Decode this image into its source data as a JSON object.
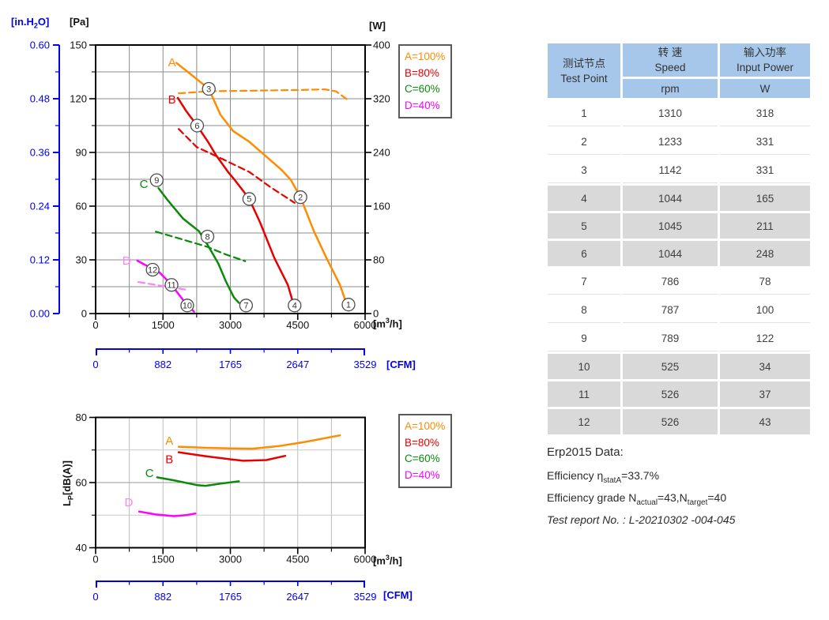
{
  "colors": {
    "A": "#FF8C00",
    "B": "#E60000",
    "C": "#0A8A0A",
    "D": "#FF00FF",
    "D_light": "#FF80FF",
    "blue_axis": "#0000EE",
    "table_header_bg": "#A6C7E9",
    "table_shaded_row_bg": "#D9D9D9"
  },
  "legend": {
    "items": [
      {
        "label": "A=100%",
        "color": "#FF8C00"
      },
      {
        "label": "B=80%",
        "color": "#E60000"
      },
      {
        "label": "C=60%",
        "color": "#0A8A0A"
      },
      {
        "label": "D=40%",
        "color": "#FF00FF"
      }
    ]
  },
  "units": {
    "inh2o_pre": "[in.H",
    "inh2o_sub": "2",
    "inh2o_post": "O]",
    "pa": "[Pa]",
    "w": "[W]",
    "m3h_pre": "[m",
    "m3h_sup": "3",
    "m3h_post": "/h]",
    "cfm": "[CFM]",
    "lp_pre": "L",
    "lp_sub": "P",
    "lp_post": "[dB(A)]"
  },
  "chart_data": [
    {
      "type": "line",
      "x_axis": {
        "unit": "m3/h",
        "range": [
          0,
          6000
        ],
        "ticks": [
          0,
          1500,
          3000,
          4500,
          6000
        ],
        "minor_step": 750
      },
      "y_axis": {
        "unit": "Pa",
        "range": [
          0,
          150
        ],
        "ticks": [
          0,
          30,
          60,
          90,
          120,
          150
        ],
        "minor_step": 15
      },
      "y2_axis": {
        "unit": "W",
        "range": [
          0,
          400
        ],
        "ticks": [
          0,
          80,
          160,
          240,
          320,
          400
        ],
        "minor_step": 40
      },
      "y3_axis": {
        "unit": "in.H2O",
        "range": [
          0,
          0.6
        ],
        "ticks": [
          "0.00",
          "0.12",
          "0.24",
          "0.36",
          "0.48",
          "0.60"
        ]
      },
      "x2_axis": {
        "unit": "CFM",
        "range": [
          0,
          3529
        ],
        "ticks": [
          0,
          882,
          1765,
          2647,
          3529
        ]
      },
      "grid": "on",
      "series": [
        {
          "name": "A-pressure",
          "legend": "A=100%",
          "color": "#FF8C00",
          "dash": false,
          "unit": "Pa",
          "points": [
            [
              1800,
              140
            ],
            [
              2150,
              133
            ],
            [
              2520,
              125.5
            ],
            [
              2780,
              111
            ],
            [
              3060,
              102
            ],
            [
              3420,
              96
            ],
            [
              3740,
              89
            ],
            [
              4150,
              80
            ],
            [
              4350,
              74.5
            ],
            [
              4560,
              65
            ],
            [
              4860,
              46
            ],
            [
              5140,
              31
            ],
            [
              5440,
              16
            ],
            [
              5620,
              3
            ]
          ]
        },
        {
          "name": "B-pressure",
          "legend": "B=80%",
          "color": "#E60000",
          "dash": false,
          "unit": "Pa",
          "points": [
            [
              1830,
              120.5
            ],
            [
              2020,
              113
            ],
            [
              2260,
              105
            ],
            [
              2500,
              96
            ],
            [
              2680,
              88.5
            ],
            [
              2950,
              79
            ],
            [
              3100,
              74.5
            ],
            [
              3300,
              68
            ],
            [
              3420,
              64
            ],
            [
              3660,
              51
            ],
            [
              3980,
              31
            ],
            [
              4280,
              16
            ],
            [
              4380,
              7.5
            ]
          ]
        },
        {
          "name": "C-pressure",
          "legend": "C=60%",
          "color": "#0A8A0A",
          "dash": false,
          "unit": "Pa",
          "points": [
            [
              1400,
              70
            ],
            [
              1600,
              63.5
            ],
            [
              1950,
              53
            ],
            [
              2300,
              46
            ],
            [
              2490,
              38.5
            ],
            [
              2730,
              28
            ],
            [
              2900,
              18
            ],
            [
              3080,
              9
            ],
            [
              3190,
              6
            ]
          ]
        },
        {
          "name": "D-pressure",
          "legend": "D=40%",
          "color": "#FF00FF",
          "dash": false,
          "unit": "Pa",
          "points": [
            [
              930,
              29.5
            ],
            [
              1150,
              26.5
            ],
            [
              1380,
              24
            ],
            [
              1600,
              18.5
            ],
            [
              1780,
              13
            ],
            [
              1950,
              7.5
            ],
            [
              2190,
              1
            ]
          ]
        },
        {
          "name": "A-input-power",
          "legend": "A=100%",
          "color": "#FF8C00",
          "dash": true,
          "unit": "W",
          "points": [
            [
              1850,
              328
            ],
            [
              2500,
              331
            ],
            [
              3500,
              332
            ],
            [
              4560,
              333
            ],
            [
              5100,
              334
            ],
            [
              5350,
              331
            ],
            [
              5620,
              318
            ]
          ]
        },
        {
          "name": "B-input-power",
          "legend": "B=80%",
          "color": "#E60000",
          "dash": true,
          "unit": "W",
          "points": [
            [
              1850,
              275
            ],
            [
              2250,
              248
            ],
            [
              2800,
              231
            ],
            [
              3420,
              211
            ],
            [
              3900,
              188
            ],
            [
              4430,
              165
            ]
          ]
        },
        {
          "name": "C-input-power",
          "legend": "C=60%",
          "color": "#0A8A0A",
          "dash": true,
          "unit": "W",
          "points": [
            [
              1340,
              122
            ],
            [
              1900,
              111
            ],
            [
              2460,
              100
            ],
            [
              2900,
              88
            ],
            [
              3330,
              78
            ]
          ]
        },
        {
          "name": "D-input-power",
          "legend": "D=40%",
          "color": "#FF80FF",
          "dash": true,
          "unit": "W",
          "points": [
            [
              950,
              47
            ],
            [
              1400,
              42
            ],
            [
              1800,
              38
            ],
            [
              2060,
              35
            ]
          ]
        }
      ],
      "curve_labels": [
        {
          "text": "A",
          "x": 1700,
          "y": 140.3,
          "color": "#FF8C00"
        },
        {
          "text": "B",
          "x": 1700,
          "y": 119.5,
          "color": "#E60000"
        },
        {
          "text": "C",
          "x": 1075,
          "y": 72.3,
          "color": "#0A8A0A"
        },
        {
          "text": "D",
          "x": 690,
          "y": 29.6,
          "color": "#FF80FF"
        }
      ],
      "test_points": [
        {
          "n": "1",
          "x": 5630,
          "y": 5
        },
        {
          "n": "2",
          "x": 4560,
          "y": 65
        },
        {
          "n": "3",
          "x": 2520,
          "y": 125.5
        },
        {
          "n": "4",
          "x": 4430,
          "y": 4.5
        },
        {
          "n": "5",
          "x": 3420,
          "y": 64
        },
        {
          "n": "6",
          "x": 2260,
          "y": 105
        },
        {
          "n": "7",
          "x": 3350,
          "y": 4.5
        },
        {
          "n": "8",
          "x": 2490,
          "y": 43
        },
        {
          "n": "9",
          "x": 1360,
          "y": 74.5
        },
        {
          "n": "10",
          "x": 2040,
          "y": 4.5
        },
        {
          "n": "11",
          "x": 1690,
          "y": 16
        },
        {
          "n": "12",
          "x": 1270,
          "y": 24.5
        }
      ]
    },
    {
      "type": "line",
      "x_axis": {
        "unit": "m3/h",
        "range": [
          0,
          6000
        ],
        "ticks": [
          0,
          1500,
          3000,
          4500,
          6000
        ],
        "minor_step": 750
      },
      "y_axis": {
        "unit": "dB(A)",
        "range": [
          40,
          80
        ],
        "ticks": [
          40,
          60,
          80
        ],
        "minor_step": 10
      },
      "x2_axis": {
        "unit": "CFM",
        "range": [
          0,
          3529
        ],
        "ticks": [
          0,
          882,
          1765,
          2647,
          3529
        ]
      },
      "grid": "on",
      "series": [
        {
          "name": "A-noise",
          "legend": "A=100%",
          "color": "#FF8C00",
          "dash": false,
          "unit": "dB",
          "points": [
            [
              1850,
              71.0
            ],
            [
              2400,
              70.7
            ],
            [
              3000,
              70.5
            ],
            [
              3500,
              70.4
            ],
            [
              4080,
              71.2
            ],
            [
              4680,
              72.5
            ],
            [
              5440,
              74.5
            ]
          ]
        },
        {
          "name": "B-noise",
          "legend": "B=80%",
          "color": "#E60000",
          "dash": false,
          "unit": "dB",
          "points": [
            [
              1850,
              69.3
            ],
            [
              2450,
              68.1
            ],
            [
              3030,
              67.1
            ],
            [
              3290,
              66.7
            ],
            [
              3800,
              66.9
            ],
            [
              4220,
              68.2
            ]
          ]
        },
        {
          "name": "C-noise",
          "legend": "C=60%",
          "color": "#0A8A0A",
          "dash": false,
          "unit": "dB",
          "points": [
            [
              1370,
              61.6
            ],
            [
              1740,
              60.7
            ],
            [
              2270,
              59.2
            ],
            [
              2450,
              59.0
            ],
            [
              2800,
              59.7
            ],
            [
              3190,
              60.4
            ]
          ]
        },
        {
          "name": "D-noise",
          "legend": "D=40%",
          "color": "#FF00FF",
          "dash": false,
          "unit": "dB",
          "points": [
            [
              970,
              51.1
            ],
            [
              1340,
              50.2
            ],
            [
              1740,
              49.7
            ],
            [
              2010,
              50.0
            ],
            [
              2220,
              50.5
            ]
          ]
        }
      ],
      "curve_labels": [
        {
          "text": "A",
          "x": 1640,
          "y": 72.9,
          "color": "#FF8C00"
        },
        {
          "text": "B",
          "x": 1640,
          "y": 67.1,
          "color": "#E60000"
        },
        {
          "text": "C",
          "x": 1200,
          "y": 62.9,
          "color": "#0A8A0A"
        },
        {
          "text": "D",
          "x": 740,
          "y": 54.0,
          "color": "#FF80FF"
        }
      ]
    }
  ],
  "table": {
    "col1_zh": "测试节点",
    "col1_en": "Test Point",
    "col2_zh": "转 速",
    "col2_en": "Speed",
    "col2_unit": "rpm",
    "col3_zh": "输入功率",
    "col3_en": "Input Power",
    "col3_unit": "W",
    "rows": [
      [
        "1",
        "1310",
        "318"
      ],
      [
        "2",
        "1233",
        "331"
      ],
      [
        "3",
        "1142",
        "331"
      ],
      [
        "4",
        "1044",
        "165"
      ],
      [
        "5",
        "1045",
        "211"
      ],
      [
        "6",
        "1044",
        "248"
      ],
      [
        "7",
        "786",
        "78"
      ],
      [
        "8",
        "787",
        "100"
      ],
      [
        "9",
        "789",
        "122"
      ],
      [
        "10",
        "525",
        "34"
      ],
      [
        "11",
        "526",
        "37"
      ],
      [
        "12",
        "526",
        "43"
      ]
    ]
  },
  "erp": {
    "title": "Erp2015  Data:",
    "efficiency": [
      "Efficiency η",
      "statA",
      "=33.7%"
    ],
    "grade": [
      "Efficiency grade N",
      "actual",
      "=43,N",
      "target",
      "=40"
    ],
    "report": "Test report No.  : L-20210302 -004-045"
  }
}
